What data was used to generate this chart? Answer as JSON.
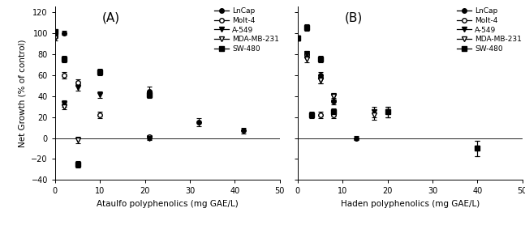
{
  "panel_A": {
    "title": "(A)",
    "xlabel": "Ataulfo polyphenolics (mg GAE/L)",
    "ylabel": "Net Growth (% of control)",
    "xlim": [
      0,
      50
    ],
    "ylim": [
      -40,
      125
    ],
    "yticks": [
      -40,
      -20,
      0,
      20,
      40,
      60,
      80,
      100,
      120
    ],
    "xticks": [
      0,
      10,
      20,
      30,
      40,
      50
    ],
    "series": {
      "LnCap": {
        "x": [
          0,
          2,
          21,
          32,
          42
        ],
        "y": [
          100,
          100,
          44,
          15,
          7
        ],
        "yerr": [
          2,
          2,
          5,
          4,
          3
        ]
      },
      "Molt-4": {
        "x": [
          0,
          2,
          5,
          10,
          21
        ],
        "y": [
          97,
          60,
          53,
          22,
          1
        ],
        "yerr": [
          2,
          3,
          3,
          3,
          2
        ]
      },
      "A-549": {
        "x": [
          0,
          2,
          5,
          10,
          21
        ],
        "y": [
          100,
          33,
          48,
          41,
          0
        ],
        "yerr": [
          2,
          3,
          3,
          3,
          2
        ]
      },
      "MDA-MB-231": {
        "x": [
          0,
          2,
          5
        ],
        "y": [
          95,
          30,
          -2
        ],
        "yerr": [
          2,
          3,
          3
        ]
      },
      "SW-480": {
        "x": [
          0,
          2,
          5,
          10,
          21
        ],
        "y": [
          101,
          75,
          -25,
          63,
          41
        ],
        "yerr": [
          2,
          3,
          3,
          3,
          3
        ]
      }
    }
  },
  "panel_B": {
    "title": "(B)",
    "xlabel": "Haden polyphenolics (mg GAE/L)",
    "xlim": [
      0,
      50
    ],
    "ylim": [
      -40,
      125
    ],
    "yticks": [
      -40,
      -20,
      0,
      20,
      40,
      60,
      80,
      100,
      120
    ],
    "xticks": [
      0,
      10,
      20,
      30,
      40,
      50
    ],
    "series": {
      "LnCap": {
        "x": [
          0,
          2,
          5,
          8,
          13
        ],
        "y": [
          95,
          80,
          60,
          35,
          0
        ],
        "yerr": [
          2,
          3,
          3,
          3,
          2
        ]
      },
      "Molt-4": {
        "x": [
          0,
          2,
          5,
          8
        ],
        "y": [
          95,
          80,
          22,
          22
        ],
        "yerr": [
          2,
          3,
          3,
          3
        ]
      },
      "A-549": {
        "x": [
          0,
          2,
          5,
          8,
          17,
          20
        ],
        "y": [
          95,
          80,
          55,
          40,
          25,
          25
        ],
        "yerr": [
          2,
          3,
          3,
          3,
          5,
          5
        ]
      },
      "MDA-MB-231": {
        "x": [
          0,
          2,
          5,
          8,
          17,
          20,
          40
        ],
        "y": [
          95,
          75,
          55,
          40,
          22,
          25,
          -10
        ],
        "yerr": [
          2,
          3,
          3,
          3,
          5,
          5,
          7
        ]
      },
      "SW-480": {
        "x": [
          0,
          2,
          3,
          5,
          8,
          20,
          40
        ],
        "y": [
          95,
          105,
          22,
          75,
          25,
          25,
          -10
        ],
        "yerr": [
          2,
          3,
          3,
          3,
          3,
          5,
          7
        ]
      }
    }
  },
  "series_order": [
    "LnCap",
    "Molt-4",
    "A-549",
    "MDA-MB-231",
    "SW-480"
  ],
  "markers": [
    "o",
    "o",
    "v",
    "v",
    "s"
  ],
  "fillstyles": [
    "full",
    "none",
    "full",
    "none",
    "full"
  ]
}
